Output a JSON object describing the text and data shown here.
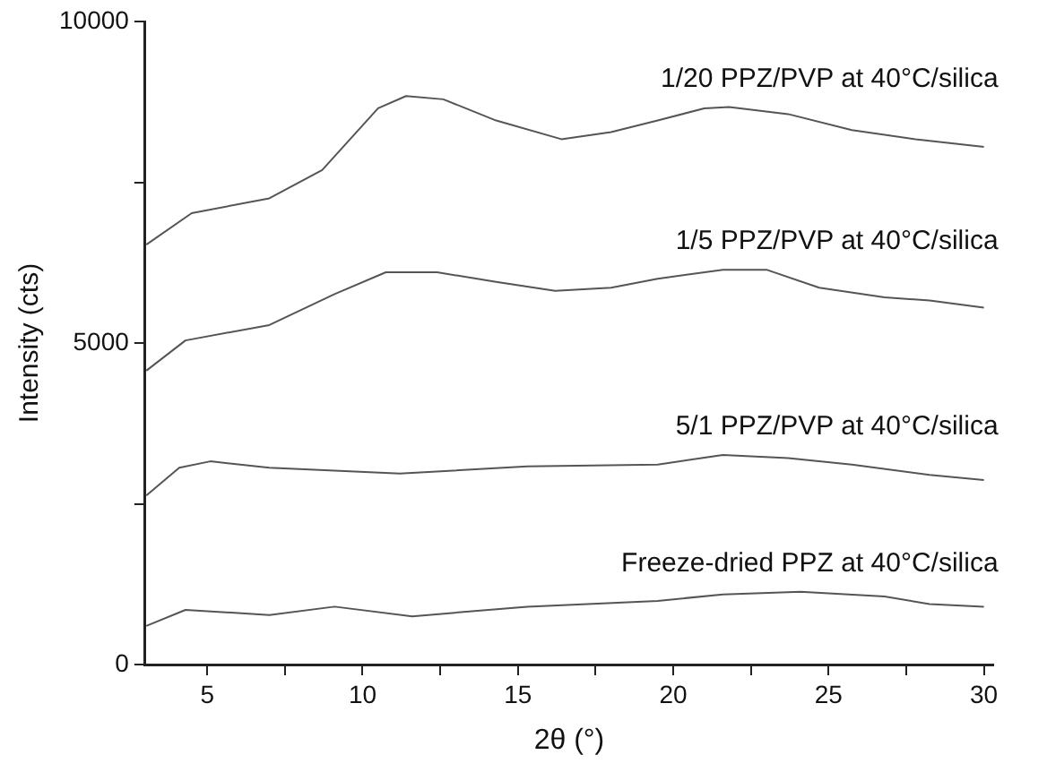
{
  "chart_data": {
    "type": "line",
    "xlabel": "2θ (°)",
    "ylabel": "Intensity (cts)",
    "xlim": [
      3,
      30.3
    ],
    "ylim": [
      0,
      10000
    ],
    "xticks": [
      5,
      {
        "value": 7.5,
        "label": null
      },
      10,
      {
        "value": 12.5,
        "label": null
      },
      15,
      {
        "value": 17.5,
        "label": null
      },
      20,
      {
        "value": 22.5,
        "label": null
      },
      25,
      {
        "value": 27.5,
        "label": null
      },
      30
    ],
    "yticks": [
      0,
      {
        "value": 2500,
        "label": null
      },
      5000,
      {
        "value": 7500,
        "label": null
      },
      10000
    ],
    "grid": false,
    "marker": "none",
    "line_style": "solid",
    "series": [
      {
        "name": "1/20 PPZ/PVP at 40°C/silica",
        "color": "#555555",
        "x": [
          3.04,
          4.5,
          7.0,
          8.7,
          10.5,
          11.4,
          12.6,
          14.3,
          16.4,
          18.0,
          19.5,
          21.0,
          21.8,
          23.7,
          25.75,
          27.8,
          30
        ],
        "values": [
          6530,
          7020,
          7250,
          7690,
          8650,
          8840,
          8790,
          8460,
          8170,
          8280,
          8460,
          8650,
          8670,
          8560,
          8310,
          8170,
          8050
        ]
      },
      {
        "name": "1/5 PPZ/PVP at 40°C/silica",
        "color": "#555555",
        "x": [
          3.04,
          4.3,
          7.0,
          9.1,
          10.75,
          12.4,
          14.3,
          16.2,
          18.0,
          19.5,
          21.6,
          23.0,
          24.7,
          26.8,
          28.25,
          30
        ],
        "values": [
          4570,
          5040,
          5280,
          5760,
          6100,
          6100,
          5950,
          5810,
          5860,
          6000,
          6140,
          6140,
          5860,
          5710,
          5660,
          5550
        ]
      },
      {
        "name": "5/1 PPZ/PVP at 40°C/silica",
        "color": "#555555",
        "x": [
          3.04,
          4.1,
          5.1,
          7.0,
          11.2,
          15.3,
          19.5,
          21.6,
          23.7,
          25.75,
          28.25,
          30
        ],
        "values": [
          2630,
          3060,
          3160,
          3060,
          2970,
          3080,
          3110,
          3260,
          3210,
          3110,
          2950,
          2870
        ]
      },
      {
        "name": "Freeze-dried PPZ at 40°C/silica",
        "color": "#555555",
        "x": [
          3.04,
          4.3,
          7.0,
          9.1,
          11.6,
          15.3,
          19.5,
          21.6,
          24.1,
          26.8,
          28.25,
          30
        ],
        "values": [
          600,
          850,
          770,
          900,
          750,
          900,
          990,
          1090,
          1130,
          1060,
          940,
          900
        ]
      }
    ]
  }
}
